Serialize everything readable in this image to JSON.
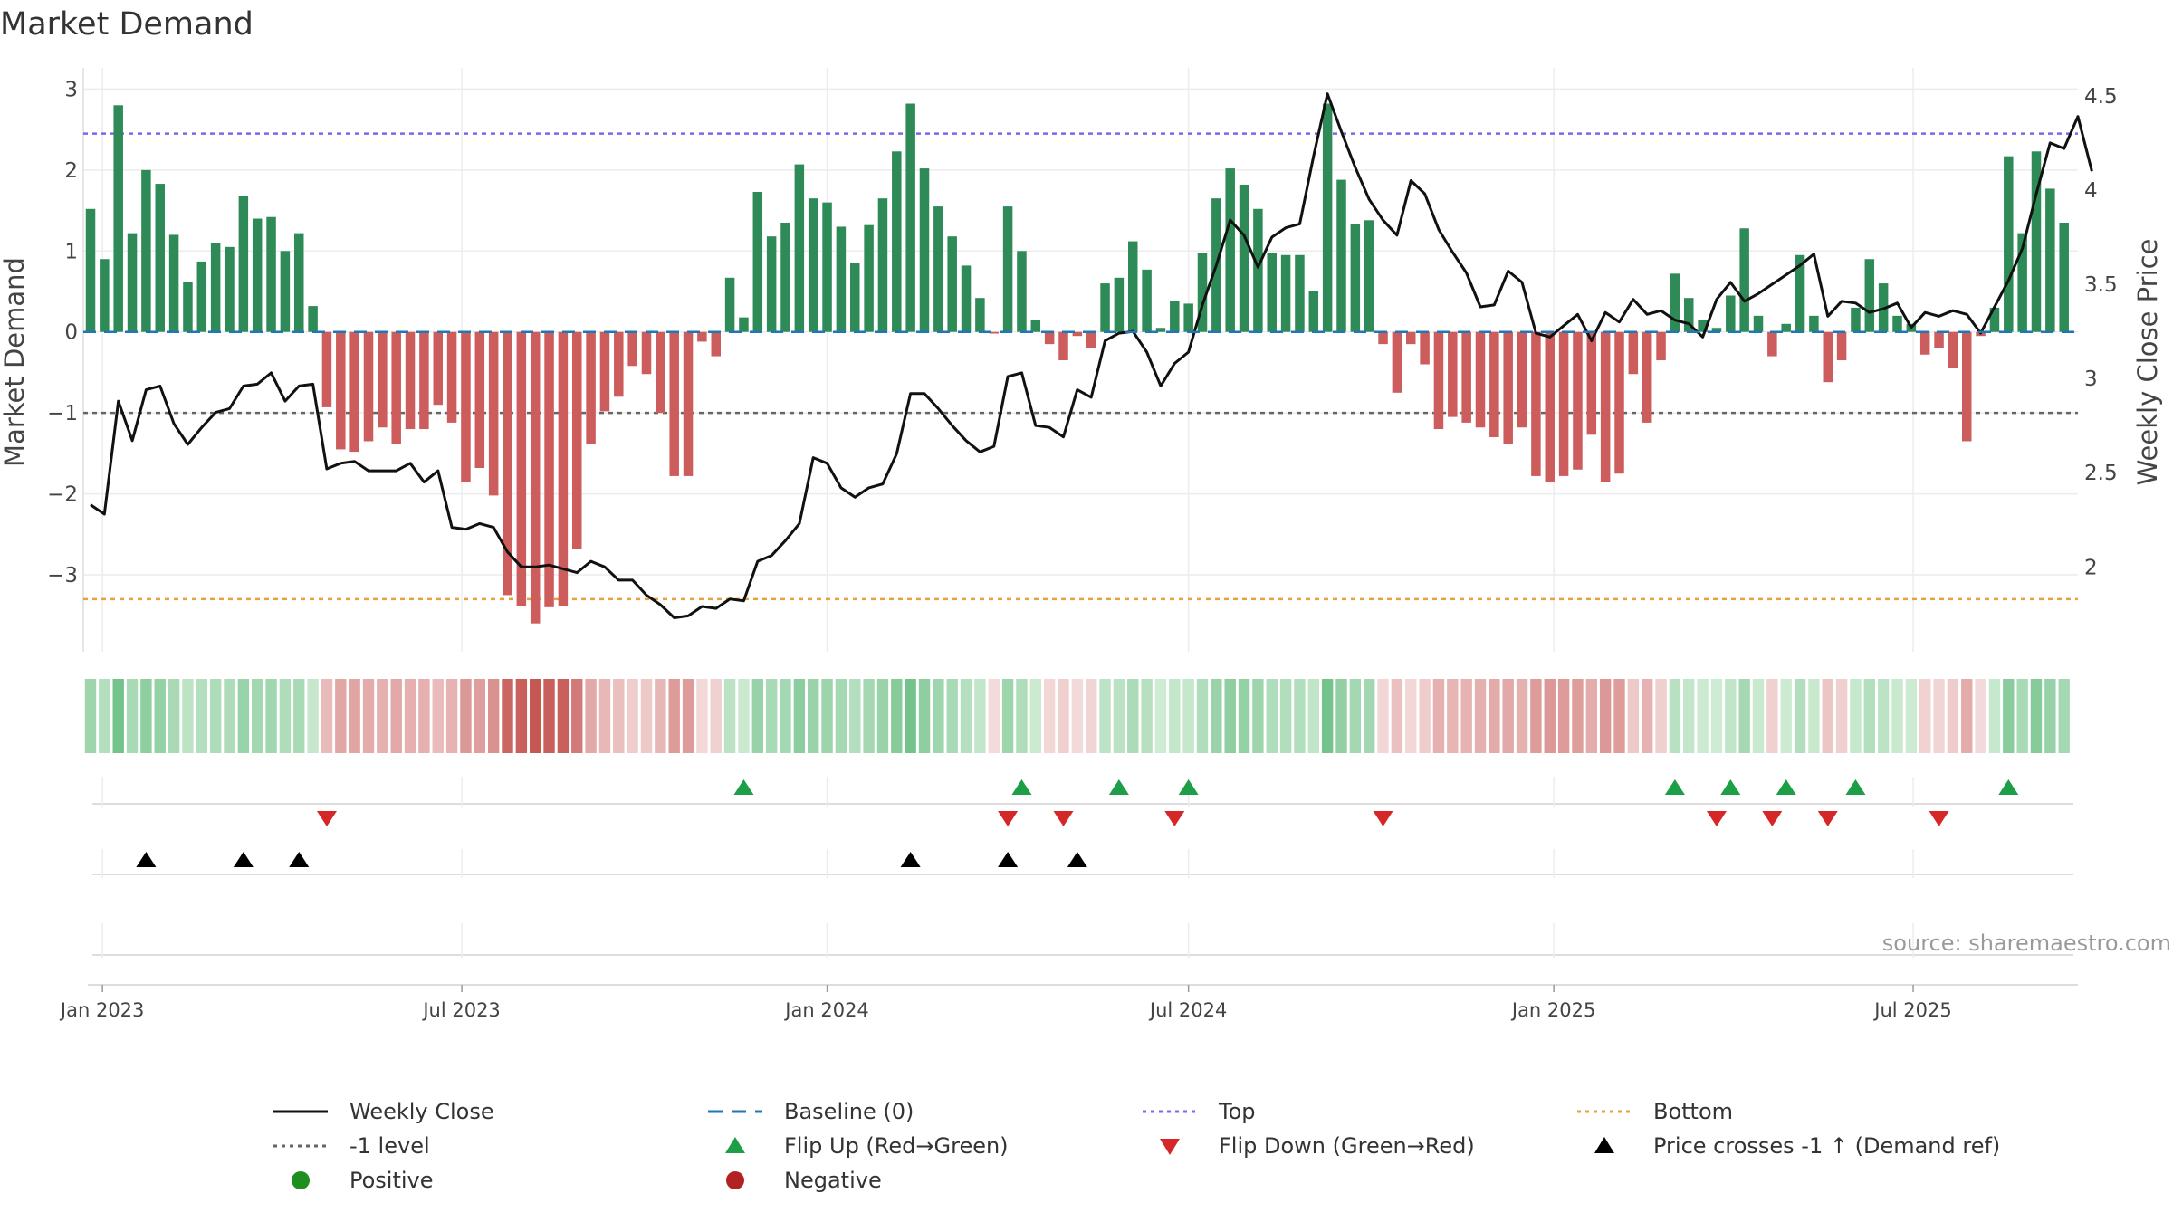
{
  "chart_data": {
    "type": "bar",
    "title": "Market Demand",
    "ylabel_left": "Market Demand",
    "ylabel_right": "Weekly Close Price",
    "source": "source: sharemaestro.com",
    "x_ticks": [
      "Jan 2023",
      "Jul 2023",
      "Jan 2024",
      "Jul 2024",
      "Jan 2025",
      "Jul 2025"
    ],
    "y_left_ticks": [
      "3",
      "2",
      "1",
      "0",
      "−1",
      "−2",
      "−3"
    ],
    "y_left_tick_values": [
      3,
      2,
      1,
      0,
      -1,
      -2,
      -3
    ],
    "y_left_range": [
      -3.95,
      3.15
    ],
    "y_right_ticks": [
      "4.5",
      "4",
      "3.5",
      "3",
      "2.5",
      "2"
    ],
    "y_right_tick_values": [
      4.5,
      4,
      3.5,
      3,
      2.5,
      2
    ],
    "y_right_range": [
      1.55,
      4.6
    ],
    "reference_lines": {
      "baseline": 0,
      "top": 2.45,
      "minus_one": -1,
      "bottom": -3.3
    },
    "start_week": "2022-12-26",
    "demand": [
      1.52,
      0.9,
      2.8,
      1.22,
      2.0,
      1.83,
      1.2,
      0.62,
      0.87,
      1.1,
      1.05,
      1.68,
      1.4,
      1.42,
      1.0,
      1.22,
      0.32,
      -0.93,
      -1.45,
      -1.48,
      -1.35,
      -1.18,
      -1.38,
      -1.2,
      -1.2,
      -0.9,
      -1.12,
      -1.85,
      -1.68,
      -2.02,
      -3.25,
      -3.38,
      -3.6,
      -3.4,
      -3.38,
      -2.68,
      -1.38,
      -0.98,
      -0.8,
      -0.42,
      -0.52,
      -1.0,
      -1.78,
      -1.78,
      -0.12,
      -0.3,
      0.67,
      0.18,
      1.73,
      1.18,
      1.35,
      2.07,
      1.65,
      1.6,
      1.3,
      0.85,
      1.32,
      1.65,
      2.23,
      2.82,
      2.02,
      1.55,
      1.18,
      0.82,
      0.42,
      -0.02,
      1.55,
      1.0,
      0.15,
      -0.15,
      -0.35,
      -0.05,
      -0.2,
      0.6,
      0.67,
      1.12,
      0.77,
      0.05,
      0.38,
      0.35,
      0.98,
      1.65,
      2.02,
      1.82,
      1.52,
      0.97,
      0.95,
      0.95,
      0.5,
      2.82,
      1.88,
      1.33,
      1.38,
      -0.15,
      -0.75,
      -0.15,
      -0.4,
      -1.2,
      -1.05,
      -1.12,
      -1.18,
      -1.3,
      -1.38,
      -1.18,
      -1.78,
      -1.85,
      -1.78,
      -1.7,
      -1.27,
      -1.85,
      -1.75,
      -0.52,
      -1.12,
      -0.35,
      0.72,
      0.42,
      0.15,
      0.05,
      0.45,
      1.28,
      0.2,
      -0.3,
      0.1,
      0.95,
      0.2,
      -0.62,
      -0.35,
      0.3,
      0.9,
      0.6,
      0.2,
      0.1,
      -0.28,
      -0.2,
      -0.45,
      -1.35,
      -0.05,
      0.3,
      2.17,
      1.22,
      2.23,
      1.77,
      1.35
    ],
    "weekly_close": [
      2.33,
      2.28,
      2.88,
      2.67,
      2.94,
      2.96,
      2.76,
      2.65,
      2.74,
      2.82,
      2.84,
      2.96,
      2.97,
      3.03,
      2.88,
      2.96,
      2.97,
      2.52,
      2.55,
      2.56,
      2.51,
      2.51,
      2.51,
      2.55,
      2.45,
      2.51,
      2.21,
      2.2,
      2.23,
      2.21,
      2.08,
      2.0,
      2.0,
      2.01,
      1.99,
      1.97,
      2.03,
      2.0,
      1.93,
      1.93,
      1.85,
      1.8,
      1.73,
      1.74,
      1.79,
      1.78,
      1.83,
      1.82,
      2.03,
      2.06,
      2.14,
      2.23,
      2.58,
      2.55,
      2.42,
      2.37,
      2.42,
      2.44,
      2.6,
      2.92,
      2.92,
      2.84,
      2.75,
      2.67,
      2.61,
      2.64,
      3.01,
      3.03,
      2.75,
      2.74,
      2.69,
      2.94,
      2.9,
      3.2,
      3.24,
      3.25,
      3.14,
      2.96,
      3.08,
      3.14,
      3.39,
      3.6,
      3.84,
      3.76,
      3.59,
      3.75,
      3.8,
      3.82,
      4.18,
      4.51,
      4.31,
      4.12,
      3.95,
      3.84,
      3.76,
      4.05,
      3.98,
      3.79,
      3.67,
      3.56,
      3.38,
      3.39,
      3.57,
      3.51,
      3.24,
      3.22,
      3.28,
      3.34,
      3.2,
      3.35,
      3.3,
      3.42,
      3.34,
      3.36,
      3.31,
      3.29,
      3.22,
      3.42,
      3.51,
      3.41,
      3.45,
      3.5,
      3.55,
      3.6,
      3.66,
      3.33,
      3.41,
      3.4,
      3.35,
      3.37,
      3.4,
      3.27,
      3.35,
      3.33,
      3.36,
      3.34,
      3.24,
      3.38,
      3.52,
      3.69,
      3.98,
      4.25,
      4.22,
      4.39,
      4.1
    ],
    "flip_up_weeks": [
      47,
      67,
      74,
      79,
      114,
      118,
      122,
      127,
      138
    ],
    "flip_down_weeks": [
      17,
      66,
      70,
      78,
      93,
      117,
      121,
      125,
      133
    ],
    "price_cross_weeks": [
      4,
      11,
      15,
      59,
      66,
      71
    ]
  },
  "legend": {
    "weekly_close": "Weekly Close",
    "baseline": "Baseline (0)",
    "top": "Top",
    "bottom": "Bottom",
    "minus_one": "-1 level",
    "flip_up": "Flip Up (Red→Green)",
    "flip_down": "Flip Down (Green→Red)",
    "price_cross": "Price crosses -1 ↑ (Demand ref)",
    "positive": "Positive",
    "negative": "Negative"
  },
  "colors": {
    "positive": "#2e8b57",
    "negative": "#cd5c5c",
    "close": "#111111",
    "baseline": "#1f77b4",
    "top": "#7b68ee",
    "bottom": "#e6a23c",
    "minus_one": "#666666",
    "flip_up": "#1e9e46",
    "flip_down": "#d62728",
    "cross": "#000000",
    "legend_positive": "#1e8e1e",
    "legend_negative": "#b22222",
    "grid": "#ececec"
  }
}
